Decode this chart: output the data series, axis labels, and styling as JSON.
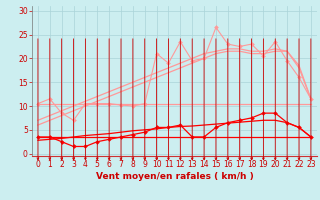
{
  "x": [
    0,
    1,
    2,
    3,
    4,
    5,
    6,
    7,
    8,
    9,
    10,
    11,
    12,
    13,
    14,
    15,
    16,
    17,
    18,
    19,
    20,
    21,
    22,
    23
  ],
  "series": [
    {
      "name": "pink_jagged",
      "color": "#ff9999",
      "lw": 0.8,
      "marker": "D",
      "ms": 2.0,
      "values": [
        10.5,
        11.5,
        8.5,
        7.0,
        10.5,
        10.5,
        10.5,
        10.2,
        10.0,
        10.5,
        21.0,
        19.0,
        23.5,
        19.5,
        20.0,
        26.5,
        23.0,
        22.5,
        23.0,
        20.5,
        23.5,
        19.5,
        16.0,
        11.5
      ]
    },
    {
      "name": "pink_trend1",
      "color": "#ff9999",
      "lw": 0.9,
      "marker": null,
      "ms": 0,
      "values": [
        6.0,
        7.0,
        8.0,
        9.0,
        10.0,
        11.0,
        12.0,
        13.0,
        14.0,
        15.0,
        16.0,
        17.0,
        18.0,
        19.0,
        20.0,
        21.0,
        21.5,
        21.5,
        21.0,
        21.0,
        21.5,
        21.5,
        18.0,
        11.5
      ]
    },
    {
      "name": "pink_trend2",
      "color": "#ff9999",
      "lw": 0.9,
      "marker": null,
      "ms": 0,
      "values": [
        7.0,
        8.0,
        9.0,
        10.0,
        11.0,
        12.0,
        13.0,
        14.0,
        15.0,
        16.0,
        17.0,
        18.0,
        19.0,
        20.0,
        21.0,
        21.5,
        22.0,
        22.0,
        21.5,
        21.5,
        22.0,
        21.5,
        18.5,
        11.5
      ]
    },
    {
      "name": "pink_flat",
      "color": "#ff9999",
      "lw": 0.9,
      "marker": null,
      "ms": 0,
      "values": [
        10.5,
        10.5,
        10.5,
        10.5,
        10.5,
        10.5,
        10.5,
        10.5,
        10.5,
        10.5,
        10.5,
        10.5,
        10.5,
        10.5,
        10.5,
        10.5,
        10.5,
        10.5,
        10.5,
        10.5,
        10.5,
        10.5,
        10.5,
        10.5
      ]
    },
    {
      "name": "red_jagged",
      "color": "#ff0000",
      "lw": 0.9,
      "marker": "D",
      "ms": 2.0,
      "values": [
        3.5,
        3.5,
        2.5,
        1.5,
        1.5,
        2.5,
        3.0,
        3.5,
        4.0,
        4.5,
        5.5,
        5.5,
        6.0,
        3.5,
        3.5,
        5.5,
        6.5,
        7.0,
        7.5,
        8.5,
        8.5,
        6.5,
        5.5,
        3.5
      ]
    },
    {
      "name": "red_flat",
      "color": "#ff0000",
      "lw": 0.9,
      "marker": null,
      "ms": 0,
      "values": [
        3.5,
        3.5,
        3.5,
        3.5,
        3.5,
        3.5,
        3.5,
        3.5,
        3.5,
        3.5,
        3.5,
        3.5,
        3.5,
        3.5,
        3.5,
        3.5,
        3.5,
        3.5,
        3.5,
        3.5,
        3.5,
        3.5,
        3.5,
        3.5
      ]
    },
    {
      "name": "red_trend",
      "color": "#ff0000",
      "lw": 0.9,
      "marker": null,
      "ms": 0,
      "values": [
        2.8,
        3.0,
        3.2,
        3.5,
        3.8,
        4.0,
        4.2,
        4.5,
        4.8,
        5.0,
        5.2,
        5.5,
        5.7,
        5.8,
        6.0,
        6.2,
        6.4,
        6.6,
        6.8,
        7.0,
        7.0,
        6.5,
        5.5,
        3.5
      ]
    }
  ],
  "xlabel": "Vent moyen/en rafales ( km/h )",
  "ylabel_ticks": [
    0,
    5,
    10,
    15,
    20,
    25,
    30
  ],
  "xlim": [
    -0.5,
    23.5
  ],
  "ylim": [
    -0.5,
    31
  ],
  "bg_color": "#cceef0",
  "grid_color": "#aad4d8",
  "text_color": "#cc0000",
  "xlabel_fontsize": 6.5,
  "tick_fontsize": 5.5
}
